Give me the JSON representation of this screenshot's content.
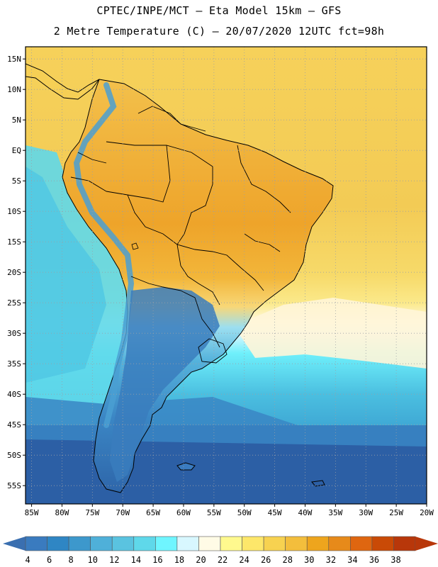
{
  "header": {
    "line1": "CPTEC/INPE/MCT –  Eta Model 15km – GFS",
    "line2": "2 Metre Temperature (C) – 20/07/2020 12UTC fct=98h"
  },
  "map": {
    "lon_range": [
      -86,
      -20
    ],
    "lat_range": [
      -58,
      17
    ],
    "lat_ticks": [
      {
        "lat": 15,
        "label": "15N"
      },
      {
        "lat": 10,
        "label": "10N"
      },
      {
        "lat": 5,
        "label": "5N"
      },
      {
        "lat": 0,
        "label": "EQ"
      },
      {
        "lat": -5,
        "label": "5S"
      },
      {
        "lat": -10,
        "label": "10S"
      },
      {
        "lat": -15,
        "label": "15S"
      },
      {
        "lat": -20,
        "label": "20S"
      },
      {
        "lat": -25,
        "label": "25S"
      },
      {
        "lat": -30,
        "label": "30S"
      },
      {
        "lat": -35,
        "label": "35S"
      },
      {
        "lat": -40,
        "label": "40S"
      },
      {
        "lat": -45,
        "label": "45S"
      },
      {
        "lat": -50,
        "label": "50S"
      },
      {
        "lat": -55,
        "label": "55S"
      }
    ],
    "lon_ticks": [
      {
        "lon": -85,
        "label": "85W"
      },
      {
        "lon": -80,
        "label": "80W"
      },
      {
        "lon": -75,
        "label": "75W"
      },
      {
        "lon": -70,
        "label": "70W"
      },
      {
        "lon": -65,
        "label": "65W"
      },
      {
        "lon": -60,
        "label": "60W"
      },
      {
        "lon": -55,
        "label": "55W"
      },
      {
        "lon": -50,
        "label": "50W"
      },
      {
        "lon": -45,
        "label": "45W"
      },
      {
        "lon": -40,
        "label": "40W"
      },
      {
        "lon": -35,
        "label": "35W"
      },
      {
        "lon": -30,
        "label": "30W"
      },
      {
        "lon": -25,
        "label": "25W"
      },
      {
        "lon": -20,
        "label": "20W"
      }
    ]
  },
  "colorbar": {
    "labels": [
      "4",
      "6",
      "8",
      "10",
      "12",
      "14",
      "16",
      "18",
      "20",
      "22",
      "24",
      "26",
      "28",
      "30",
      "32",
      "34",
      "36",
      "38"
    ],
    "colors": [
      "#3a7bbf",
      "#2f86c4",
      "#3d98cc",
      "#4fb0d9",
      "#5ac3e0",
      "#5fd8ea",
      "#6ff5ff",
      "#d8f7ff",
      "#fffbe6",
      "#fff98e",
      "#fde76a",
      "#f7d250",
      "#f3be3c",
      "#eea51d",
      "#e78a1a",
      "#df6610",
      "#c94a06",
      "#b8370a"
    ],
    "low_color": "#3a6fb0",
    "high_color": "#b8370a"
  }
}
